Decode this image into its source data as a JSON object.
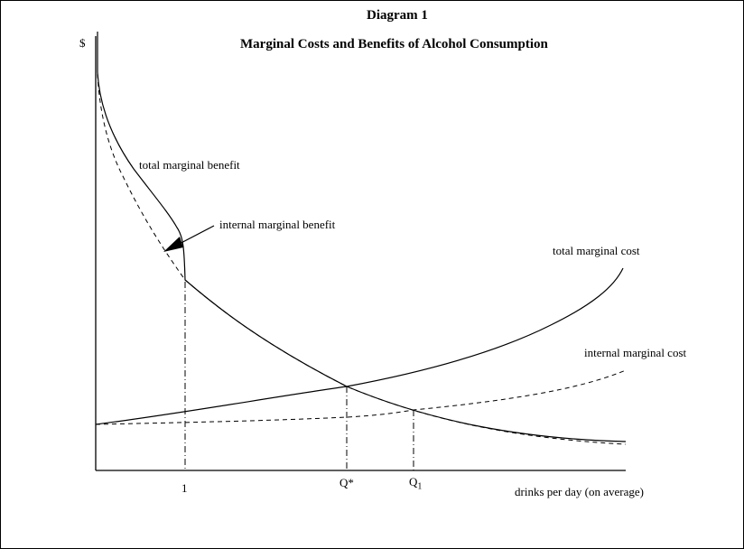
{
  "diagram": {
    "figure_label": "Diagram 1",
    "title": "Marginal Costs and Benefits of Alcohol Consumption",
    "y_axis_label": "$",
    "x_axis_label": "drinks per day (on average)",
    "tick_labels": {
      "one": "1",
      "q_star": "Q*",
      "q_one_base": "Q",
      "q_one_sub": "1"
    },
    "curve_labels": {
      "total_marginal_benefit": "total marginal benefit",
      "internal_marginal_benefit": "internal marginal benefit",
      "total_marginal_cost": "total marginal cost",
      "internal_marginal_cost": "internal marginal cost"
    },
    "colors": {
      "ink": "#000000",
      "background": "#ffffff"
    }
  }
}
